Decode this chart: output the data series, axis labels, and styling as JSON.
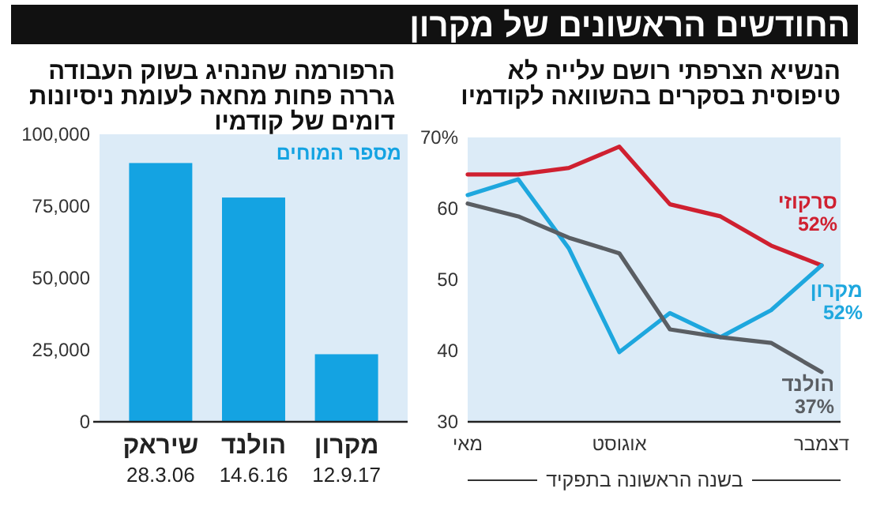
{
  "chart_data": [
    {
      "type": "line",
      "title": "החודשים הראשונים של מקרון",
      "subtitle": "הנשיא הצרפתי רושם עלייה לא\nטיפוסית בסקרים בהשוואה לקודמיו",
      "categories": [
        "מאי",
        null,
        null,
        "אוגוסט",
        null,
        null,
        null,
        "דצמבר"
      ],
      "xlabel": "בשנה הראשונה בתפקיד",
      "ylim": [
        30,
        70
      ],
      "yticks": [
        30,
        40,
        50,
        60,
        {
          "value": 70,
          "label": "70%"
        }
      ],
      "legend": false,
      "series": [
        {
          "name": "סרקוזי",
          "color": "#cf2030",
          "values": [
            64.8,
            64.8,
            65.7,
            68.7,
            60.6,
            58.9,
            54.8,
            52
          ],
          "value_labels": [
            null,
            null,
            null,
            null,
            null,
            null,
            null,
            "52%"
          ]
        },
        {
          "name": "מקרון",
          "color": "#1ea7de",
          "values": [
            61.9,
            64.1,
            54.4,
            39.8,
            45.3,
            41.9,
            45.7,
            52
          ],
          "value_labels": [
            null,
            null,
            null,
            null,
            null,
            null,
            null,
            "52%"
          ]
        },
        {
          "name": "הולנד",
          "color": "#5a5e63",
          "values": [
            60.7,
            58.9,
            55.9,
            53.7,
            43,
            41.9,
            41.1,
            37
          ],
          "value_labels": [
            null,
            null,
            null,
            null,
            null,
            null,
            null,
            "37%"
          ]
        }
      ]
    },
    {
      "type": "bar",
      "title": "הרפורמה שהנהיג בשוק העבודה\nגררה פחות מחאה לעומת ניסיונות\nדומים של קודמיו",
      "categories": [
        "שיראק\n28.3.06",
        "הולנד\n14.6.16",
        "מקרון\n12.9.17"
      ],
      "ylim": [
        0,
        100000
      ],
      "yticks": [
        0,
        {
          "value": 25000,
          "label": "25,000"
        },
        {
          "value": 50000,
          "label": "50,000"
        },
        {
          "value": 75000,
          "label": "75,000"
        },
        {
          "value": 100000,
          "label": "100,000"
        }
      ],
      "legend": "top right",
      "series": [
        {
          "name": "מספר המוחים",
          "color": "#14a3e2",
          "values": [
            90000,
            78000,
            23500
          ]
        }
      ]
    }
  ]
}
